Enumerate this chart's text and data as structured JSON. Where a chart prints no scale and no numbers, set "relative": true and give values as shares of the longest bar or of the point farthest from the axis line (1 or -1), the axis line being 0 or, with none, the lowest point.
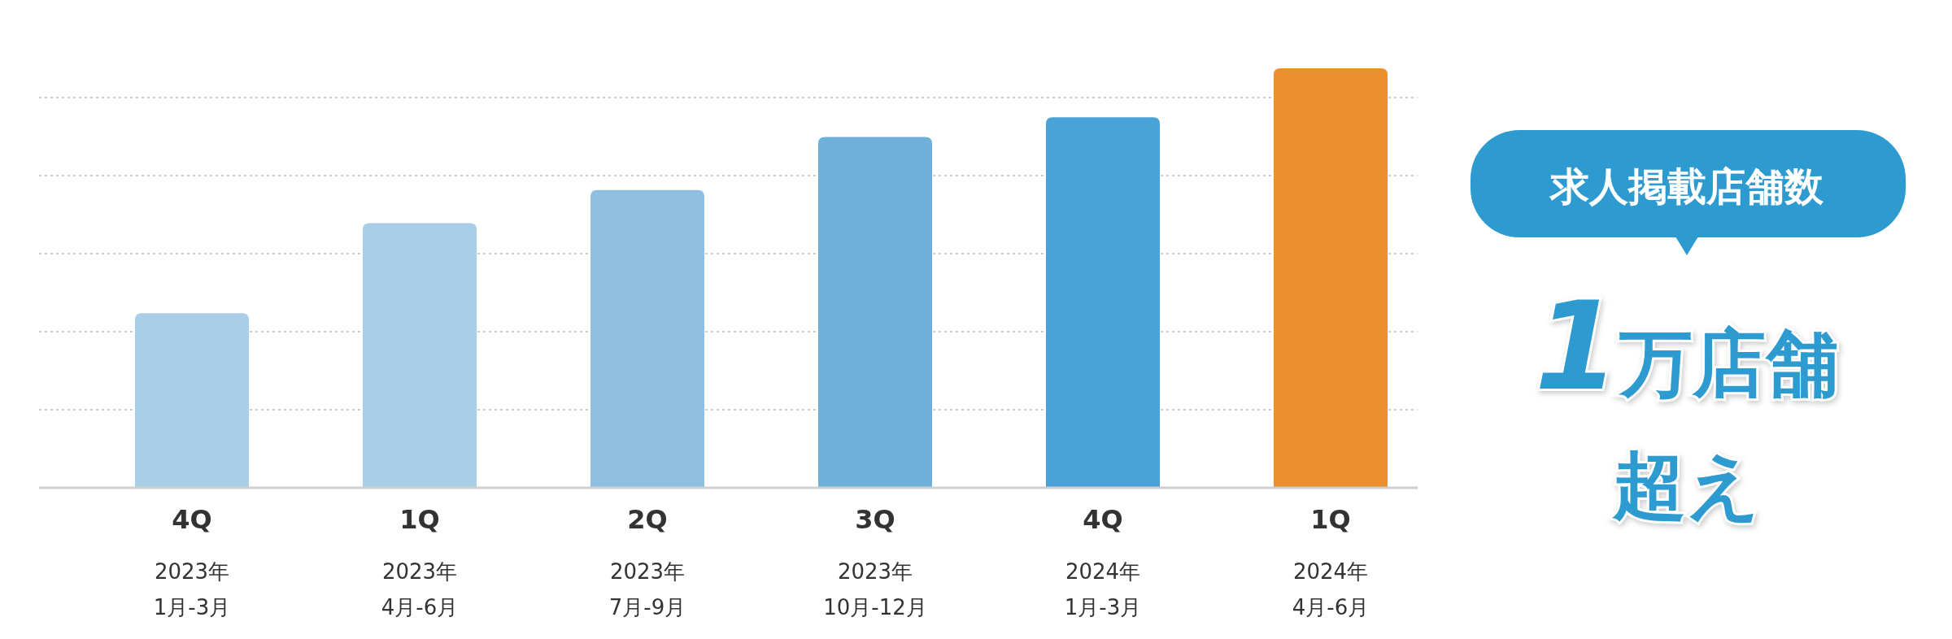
{
  "chart_data": {
    "type": "bar",
    "relative": true,
    "grid": true,
    "categories": [
      "4Q\n2023年\n1月-3月",
      "1Q\n2023年\n4月-6月",
      "2Q\n2023年\n7月-9月",
      "3Q\n2023年\n10月-12月",
      "4Q\n2024年\n1月-3月",
      "1Q\n2024年\n4月-6月"
    ],
    "values": [
      0.416,
      0.631,
      0.71,
      0.836,
      0.883,
      1
    ],
    "colors": [
      "#aacde8",
      "#aacde8",
      "#8fbfe0",
      "#6eb0da",
      "#4aa3d8",
      "#eb8f31"
    ],
    "annotations": [
      "求人掲載店舗数",
      "1万店舗",
      "超え"
    ]
  }
}
